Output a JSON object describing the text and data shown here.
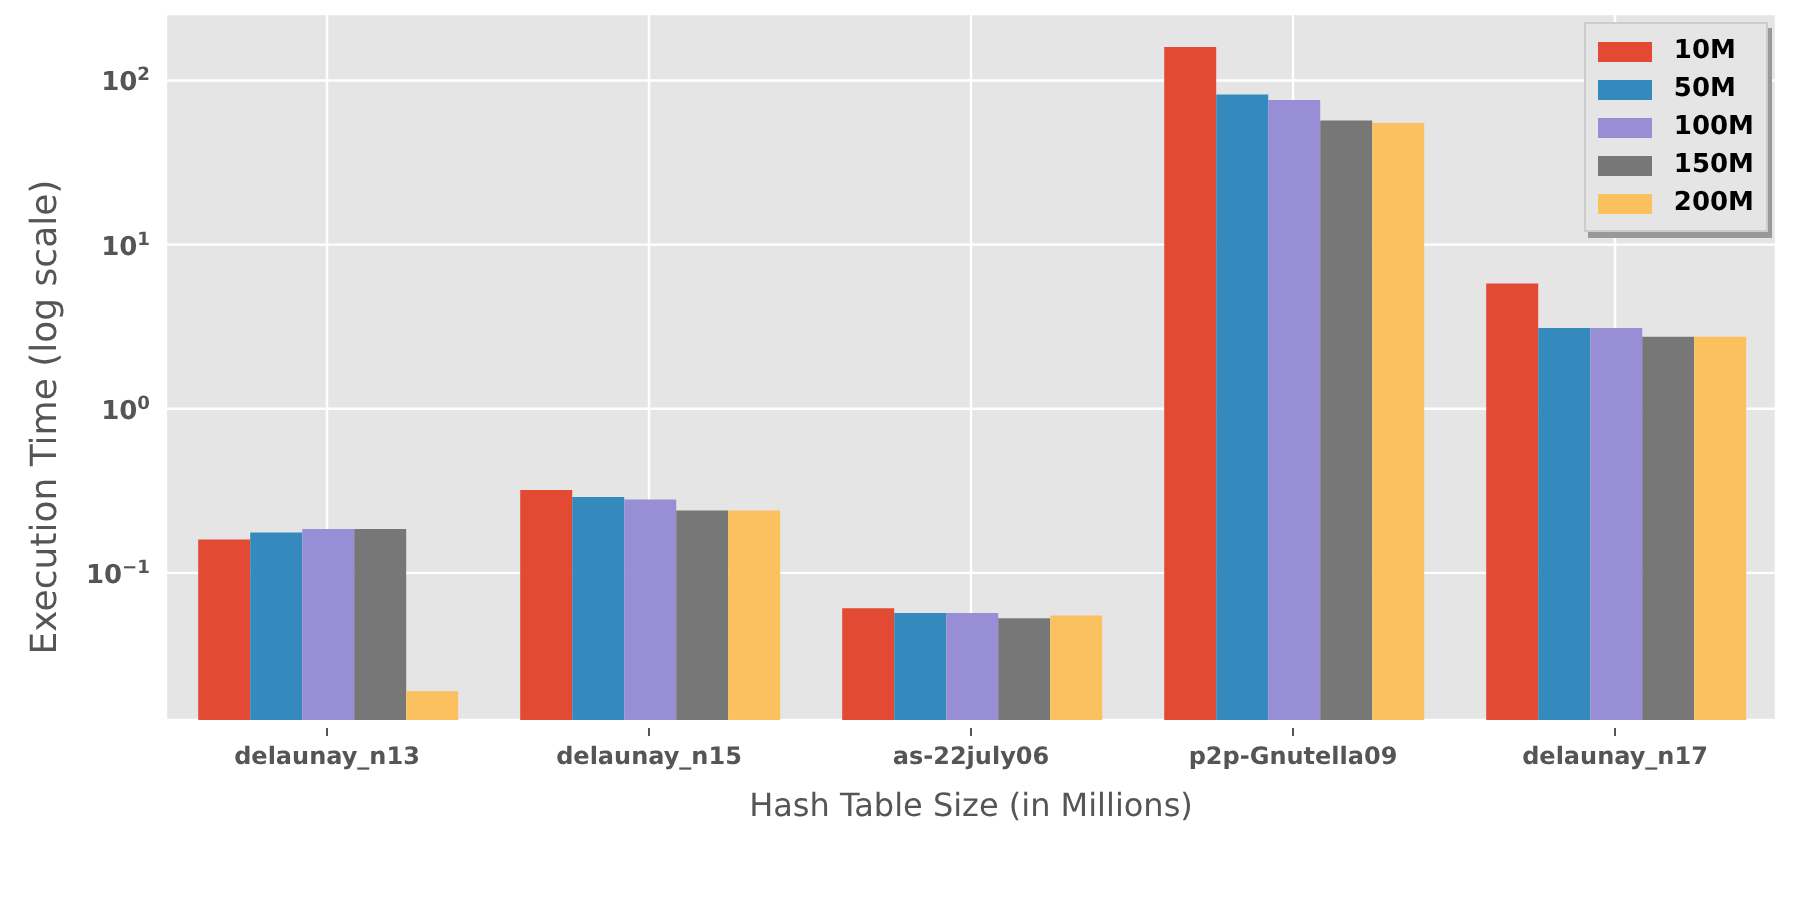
{
  "chart_data": {
    "type": "bar",
    "xlabel": "Hash Table Size (in Millions)",
    "ylabel": "Execution Time (log scale)",
    "categories": [
      "delaunay_n13",
      "delaunay_n15",
      "as-22july06",
      "p2p-Gnutella09",
      "delaunay_n17"
    ],
    "series": [
      {
        "name": "10M",
        "color": "#e24a33",
        "values": [
          0.16,
          0.32,
          0.061,
          160,
          5.8
        ]
      },
      {
        "name": "50M",
        "color": "#348abd",
        "values": [
          0.176,
          0.29,
          0.057,
          82,
          3.1
        ]
      },
      {
        "name": "100M",
        "color": "#988ed5",
        "values": [
          0.185,
          0.28,
          0.057,
          76,
          3.1
        ]
      },
      {
        "name": "150M",
        "color": "#777777",
        "values": [
          0.185,
          0.24,
          0.053,
          57,
          2.75
        ]
      },
      {
        "name": "200M",
        "color": "#fbc15e",
        "values": [
          0.019,
          0.24,
          0.055,
          55,
          2.75
        ]
      }
    ],
    "log": "y",
    "ylim": [
      0.0127,
      254
    ],
    "yticks": [
      {
        "value": 0.1,
        "label": "10$^{−1}$"
      },
      {
        "value": 1,
        "label": "10$^{0}$"
      },
      {
        "value": 10,
        "label": "10$^{1}$"
      },
      {
        "value": 100,
        "label": "10$^{2}$"
      }
    ],
    "grid": true,
    "legend": "top right"
  }
}
